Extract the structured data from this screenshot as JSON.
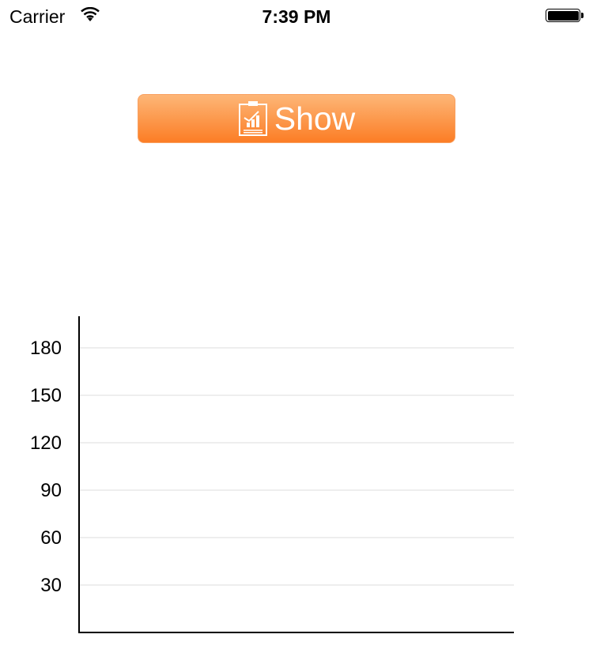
{
  "status_bar": {
    "carrier": "Carrier",
    "time": "7:39 PM",
    "wifi_icon": "wifi-icon",
    "battery_icon": "battery-full-icon"
  },
  "show_button": {
    "label": "Show",
    "icon": "chart-clipboard-icon",
    "color_top": "#fdb677",
    "color_bottom": "#fc7d25"
  },
  "chart_data": {
    "type": "bar",
    "categories": [],
    "values": [],
    "title": "",
    "xlabel": "",
    "ylabel": "",
    "ylim": [
      0,
      200
    ],
    "yticks": [
      30,
      60,
      90,
      120,
      150,
      180
    ],
    "grid": true,
    "grid_color": "#eeeeee"
  }
}
